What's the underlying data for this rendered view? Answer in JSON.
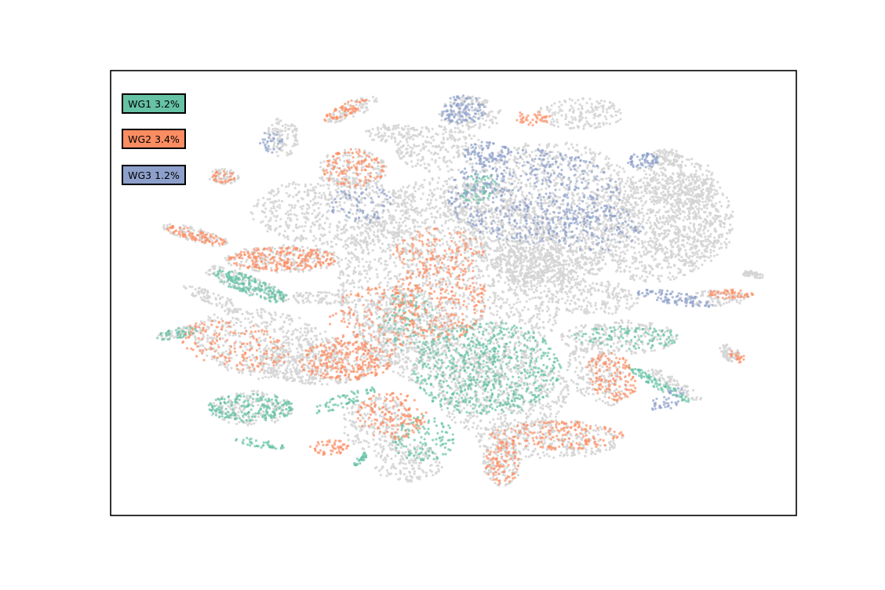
{
  "chart_data": {
    "type": "scatter",
    "title": "",
    "xlabel": "",
    "ylabel": "",
    "axes_ticks": false,
    "grid": false,
    "legend_placement": "top-left",
    "background_color": "#d3d3d3",
    "series": [
      {
        "name": "WG1",
        "label": "WG1 3.2%",
        "percent": 3.2,
        "color": "#66c2a5"
      },
      {
        "name": "WG2",
        "label": "WG2 3.4%",
        "percent": 3.4,
        "color": "#fc8d62"
      },
      {
        "name": "WG3",
        "label": "WG3 1.2%",
        "percent": 1.2,
        "color": "#8da0cb"
      }
    ]
  }
}
